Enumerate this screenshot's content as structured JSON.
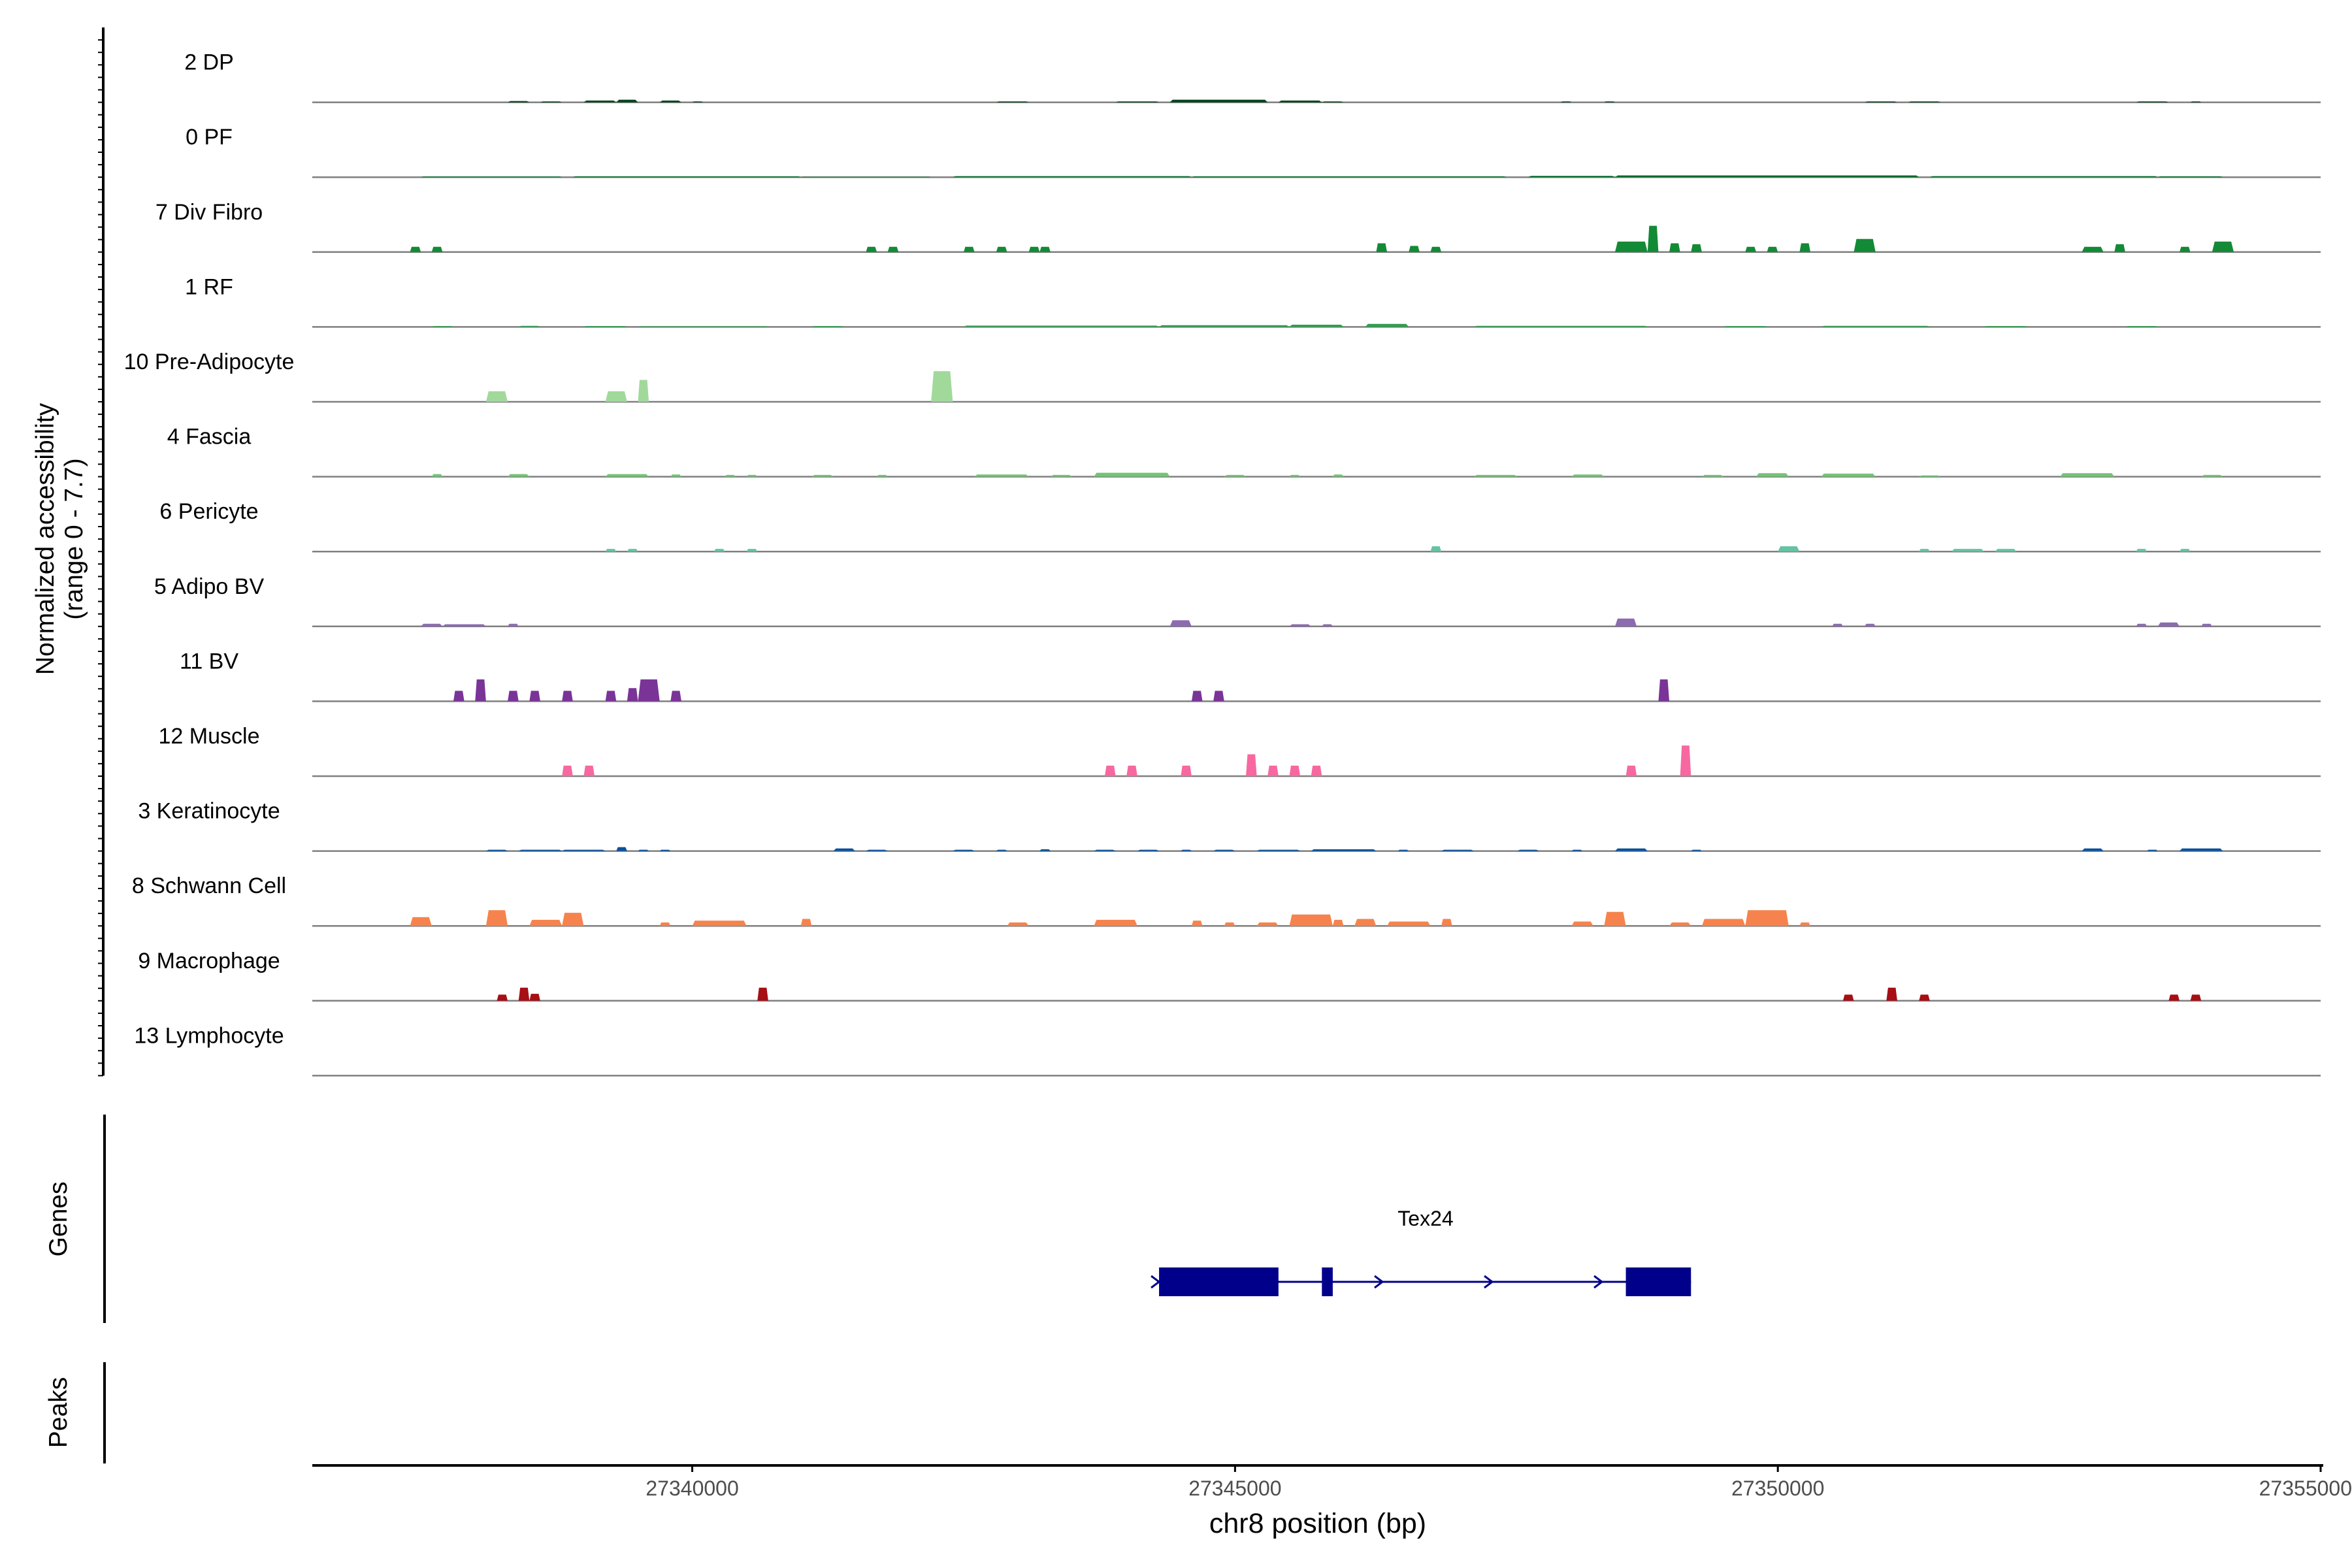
{
  "chart_data": {
    "type": "coverage",
    "title": "",
    "xlabel": "chr8 position (bp)",
    "ylabel_line1": "Normalized accessibility",
    "ylabel_line2": "(range 0 - 7.7)",
    "y_range": [
      0,
      7.7
    ],
    "xlim": [
      27336500,
      27355000
    ],
    "x_ticks": [
      27340000,
      27345000,
      27350000,
      27355000
    ],
    "x_tick_labels": [
      "27340000",
      "27345000",
      "27350000",
      "27355000"
    ],
    "tracks": [
      {
        "name": "2 DP",
        "color": "#00441b",
        "regions": [
          [
            27338300,
            27338500,
            0.15
          ],
          [
            27338600,
            27338800,
            0.1
          ],
          [
            27339000,
            27339300,
            0.2
          ],
          [
            27339300,
            27339500,
            0.3
          ],
          [
            27339700,
            27339900,
            0.2
          ],
          [
            27340000,
            27340100,
            0.1
          ],
          [
            27342800,
            27343100,
            0.1
          ],
          [
            27343900,
            27344300,
            0.1
          ],
          [
            27344400,
            27345300,
            0.3
          ],
          [
            27345400,
            27345800,
            0.2
          ],
          [
            27345800,
            27346000,
            0.1
          ],
          [
            27348000,
            27348100,
            0.1
          ],
          [
            27348400,
            27348500,
            0.1
          ],
          [
            27350800,
            27351100,
            0.1
          ],
          [
            27351200,
            27351500,
            0.1
          ],
          [
            27353300,
            27353600,
            0.1
          ],
          [
            27353800,
            27353900,
            0.1
          ]
        ]
      },
      {
        "name": "0 PF",
        "color": "#00692a",
        "regions": [
          [
            27337500,
            27338800,
            0.08
          ],
          [
            27338900,
            27341000,
            0.1
          ],
          [
            27341000,
            27342200,
            0.05
          ],
          [
            27342400,
            27344600,
            0.12
          ],
          [
            27344600,
            27347500,
            0.1
          ],
          [
            27347700,
            27348500,
            0.15
          ],
          [
            27348500,
            27351300,
            0.2
          ],
          [
            27351400,
            27353500,
            0.12
          ],
          [
            27353500,
            27354100,
            0.1
          ]
        ]
      },
      {
        "name": "7 Div Fibro",
        "color": "#138a36",
        "regions": [
          [
            27337400,
            27337500,
            0.6
          ],
          [
            27337600,
            27337700,
            0.6
          ],
          [
            27341600,
            27341700,
            0.6
          ],
          [
            27341800,
            27341900,
            0.6
          ],
          [
            27342500,
            27342600,
            0.6
          ],
          [
            27342800,
            27342900,
            0.6
          ],
          [
            27343100,
            27343200,
            0.6
          ],
          [
            27343200,
            27343300,
            0.6
          ],
          [
            27346300,
            27346400,
            1.0
          ],
          [
            27346600,
            27346700,
            0.7
          ],
          [
            27346800,
            27346900,
            0.6
          ],
          [
            27348500,
            27348800,
            1.2
          ],
          [
            27348800,
            27348900,
            3.0
          ],
          [
            27349000,
            27349100,
            1.0
          ],
          [
            27349200,
            27349300,
            0.9
          ],
          [
            27349700,
            27349800,
            0.6
          ],
          [
            27349900,
            27350000,
            0.6
          ],
          [
            27350200,
            27350300,
            1.0
          ],
          [
            27350700,
            27350900,
            1.5
          ],
          [
            27352800,
            27353000,
            0.6
          ],
          [
            27353100,
            27353200,
            0.9
          ],
          [
            27353700,
            27353800,
            0.6
          ],
          [
            27354000,
            27354200,
            1.2
          ]
        ]
      },
      {
        "name": "1 RF",
        "color": "#2d9e4e",
        "regions": [
          [
            27337600,
            27337800,
            0.1
          ],
          [
            27338400,
            27338600,
            0.12
          ],
          [
            27339000,
            27339400,
            0.1
          ],
          [
            27339500,
            27340700,
            0.08
          ],
          [
            27341100,
            27341400,
            0.1
          ],
          [
            27342500,
            27344300,
            0.15
          ],
          [
            27344300,
            27345500,
            0.2
          ],
          [
            27345500,
            27346000,
            0.25
          ],
          [
            27346200,
            27346600,
            0.35
          ],
          [
            27347200,
            27348800,
            0.12
          ],
          [
            27349500,
            27349900,
            0.1
          ],
          [
            27350400,
            27351400,
            0.12
          ],
          [
            27351900,
            27352300,
            0.1
          ],
          [
            27353200,
            27353500,
            0.1
          ]
        ]
      },
      {
        "name": "10 Pre-Adipocyte",
        "color": "#a1d99b",
        "regions": [
          [
            27338100,
            27338300,
            1.2
          ],
          [
            27339200,
            27339400,
            1.2
          ],
          [
            27339500,
            27339600,
            2.5
          ],
          [
            27342200,
            27342400,
            3.5
          ]
        ]
      },
      {
        "name": "4 Fascia",
        "color": "#74c476",
        "regions": [
          [
            27337600,
            27337700,
            0.3
          ],
          [
            27338300,
            27338500,
            0.3
          ],
          [
            27339200,
            27339600,
            0.3
          ],
          [
            27339800,
            27339900,
            0.25
          ],
          [
            27340300,
            27340400,
            0.2
          ],
          [
            27340500,
            27340600,
            0.2
          ],
          [
            27341100,
            27341300,
            0.2
          ],
          [
            27341700,
            27341800,
            0.2
          ],
          [
            27342600,
            27343100,
            0.25
          ],
          [
            27343300,
            27343500,
            0.2
          ],
          [
            27343700,
            27344400,
            0.45
          ],
          [
            27344900,
            27345100,
            0.2
          ],
          [
            27345500,
            27345600,
            0.2
          ],
          [
            27345900,
            27346000,
            0.25
          ],
          [
            27347200,
            27347600,
            0.2
          ],
          [
            27348100,
            27348400,
            0.25
          ],
          [
            27349300,
            27349500,
            0.2
          ],
          [
            27349800,
            27350100,
            0.4
          ],
          [
            27350400,
            27350900,
            0.35
          ],
          [
            27351300,
            27351500,
            0.15
          ],
          [
            27352600,
            27353100,
            0.4
          ],
          [
            27353900,
            27354100,
            0.2
          ]
        ]
      },
      {
        "name": "6 Pericyte",
        "color": "#66c2a4",
        "regions": [
          [
            27339200,
            27339300,
            0.3
          ],
          [
            27339400,
            27339500,
            0.3
          ],
          [
            27340200,
            27340300,
            0.3
          ],
          [
            27340500,
            27340600,
            0.3
          ],
          [
            27346800,
            27346900,
            0.6
          ],
          [
            27350000,
            27350200,
            0.6
          ],
          [
            27351300,
            27351400,
            0.3
          ],
          [
            27351600,
            27351900,
            0.3
          ],
          [
            27352000,
            27352200,
            0.3
          ],
          [
            27353300,
            27353400,
            0.3
          ],
          [
            27353700,
            27353800,
            0.3
          ]
        ]
      },
      {
        "name": "5 Adipo BV",
        "color": "#8c6bb1",
        "regions": [
          [
            27337500,
            27337700,
            0.3
          ],
          [
            27337700,
            27338100,
            0.25
          ],
          [
            27338300,
            27338400,
            0.3
          ],
          [
            27344400,
            27344600,
            0.7
          ],
          [
            27345500,
            27345700,
            0.25
          ],
          [
            27345800,
            27345900,
            0.25
          ],
          [
            27348500,
            27348700,
            0.9
          ],
          [
            27350500,
            27350600,
            0.3
          ],
          [
            27350800,
            27350900,
            0.3
          ],
          [
            27353300,
            27353400,
            0.3
          ],
          [
            27353500,
            27353700,
            0.45
          ],
          [
            27353900,
            27354000,
            0.3
          ]
        ]
      },
      {
        "name": "11 BV",
        "color": "#7a3498",
        "regions": [
          [
            27337800,
            27337900,
            1.2
          ],
          [
            27338000,
            27338100,
            2.5
          ],
          [
            27338300,
            27338400,
            1.2
          ],
          [
            27338500,
            27338600,
            1.2
          ],
          [
            27338800,
            27338900,
            1.2
          ],
          [
            27339200,
            27339300,
            1.2
          ],
          [
            27339400,
            27339500,
            1.5
          ],
          [
            27339500,
            27339700,
            2.5
          ],
          [
            27339800,
            27339900,
            1.2
          ],
          [
            27344600,
            27344700,
            1.2
          ],
          [
            27344800,
            27344900,
            1.2
          ],
          [
            27348900,
            27349000,
            2.5
          ]
        ]
      },
      {
        "name": "12 Muscle",
        "color": "#f768a1",
        "regions": [
          [
            27338800,
            27338900,
            1.2
          ],
          [
            27339000,
            27339100,
            1.2
          ],
          [
            27343800,
            27343900,
            1.2
          ],
          [
            27344000,
            27344100,
            1.2
          ],
          [
            27344500,
            27344600,
            1.2
          ],
          [
            27345100,
            27345200,
            2.5
          ],
          [
            27345300,
            27345400,
            1.2
          ],
          [
            27345500,
            27345600,
            1.2
          ],
          [
            27345700,
            27345800,
            1.2
          ],
          [
            27348600,
            27348700,
            1.2
          ],
          [
            27349100,
            27349200,
            3.5
          ]
        ]
      },
      {
        "name": "3 Keratinocyte",
        "color": "#08519c",
        "regions": [
          [
            27338100,
            27338300,
            0.15
          ],
          [
            27338400,
            27338800,
            0.15
          ],
          [
            27338800,
            27339200,
            0.15
          ],
          [
            27339300,
            27339400,
            0.45
          ],
          [
            27339500,
            27339600,
            0.15
          ],
          [
            27339700,
            27339800,
            0.15
          ],
          [
            27341300,
            27341500,
            0.3
          ],
          [
            27341600,
            27341800,
            0.15
          ],
          [
            27342400,
            27342600,
            0.15
          ],
          [
            27342800,
            27342900,
            0.15
          ],
          [
            27343200,
            27343300,
            0.2
          ],
          [
            27343700,
            27343900,
            0.15
          ],
          [
            27344100,
            27344300,
            0.15
          ],
          [
            27344500,
            27344600,
            0.15
          ],
          [
            27344800,
            27345000,
            0.15
          ],
          [
            27345200,
            27345600,
            0.15
          ],
          [
            27345700,
            27346300,
            0.2
          ],
          [
            27346500,
            27346600,
            0.15
          ],
          [
            27346900,
            27347200,
            0.15
          ],
          [
            27347600,
            27347800,
            0.15
          ],
          [
            27348100,
            27348200,
            0.15
          ],
          [
            27348500,
            27348800,
            0.3
          ],
          [
            27349200,
            27349300,
            0.15
          ],
          [
            27352800,
            27353000,
            0.3
          ],
          [
            27353400,
            27353500,
            0.15
          ],
          [
            27353700,
            27354100,
            0.3
          ]
        ]
      },
      {
        "name": "8 Schwann Cell",
        "color": "#f6834d",
        "regions": [
          [
            27337400,
            27337600,
            1.0
          ],
          [
            27338100,
            27338300,
            1.8
          ],
          [
            27338500,
            27338800,
            0.7
          ],
          [
            27338800,
            27339000,
            1.5
          ],
          [
            27339700,
            27339800,
            0.4
          ],
          [
            27340000,
            27340500,
            0.6
          ],
          [
            27341000,
            27341100,
            0.8
          ],
          [
            27342900,
            27343100,
            0.4
          ],
          [
            27343700,
            27344100,
            0.7
          ],
          [
            27344600,
            27344700,
            0.6
          ],
          [
            27344900,
            27345000,
            0.4
          ],
          [
            27345200,
            27345400,
            0.4
          ],
          [
            27345500,
            27345900,
            1.3
          ],
          [
            27345900,
            27346000,
            0.7
          ],
          [
            27346100,
            27346300,
            0.8
          ],
          [
            27346400,
            27346800,
            0.5
          ],
          [
            27346900,
            27347000,
            0.8
          ],
          [
            27348100,
            27348300,
            0.5
          ],
          [
            27348400,
            27348600,
            1.6
          ],
          [
            27349000,
            27349200,
            0.4
          ],
          [
            27349300,
            27349700,
            0.8
          ],
          [
            27349700,
            27350100,
            1.8
          ],
          [
            27350200,
            27350300,
            0.4
          ]
        ]
      },
      {
        "name": "9 Macrophage",
        "color": "#a50f15",
        "regions": [
          [
            27338200,
            27338300,
            0.7
          ],
          [
            27338400,
            27338500,
            1.5
          ],
          [
            27338500,
            27338600,
            0.8
          ],
          [
            27340600,
            27340700,
            1.5
          ],
          [
            27350600,
            27350700,
            0.7
          ],
          [
            27351000,
            27351100,
            1.5
          ],
          [
            27351300,
            27351400,
            0.7
          ],
          [
            27353600,
            27353700,
            0.7
          ],
          [
            27353800,
            27353900,
            0.7
          ]
        ]
      },
      {
        "name": "13 Lymphocyte",
        "color": "#7f0000",
        "regions": []
      }
    ],
    "genes_label": "Genes",
    "peaks_label": "Peaks",
    "gene": {
      "name": "Tex24",
      "strand": "+",
      "start": 27344300,
      "end": 27349200,
      "color": "#00008b",
      "exons": [
        [
          27344300,
          27345400
        ],
        [
          27345800,
          27345900
        ],
        [
          27348600,
          27349200
        ]
      ]
    }
  }
}
